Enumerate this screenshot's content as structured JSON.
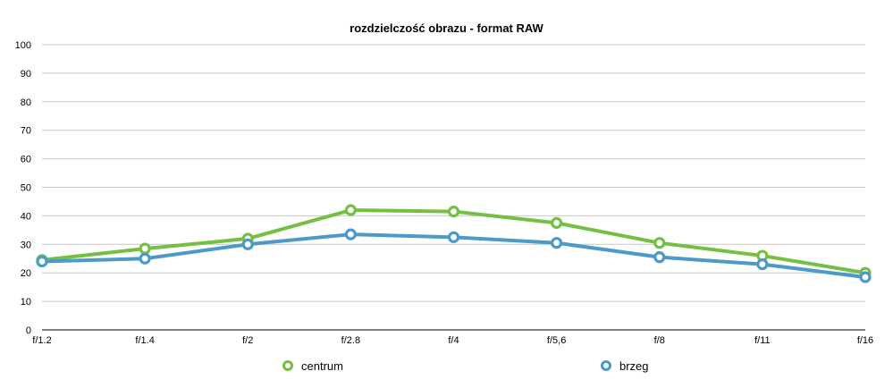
{
  "chart_data": {
    "type": "line",
    "title": "rozdzielczość obrazu - format RAW",
    "xlabel": "",
    "ylabel": "",
    "categories": [
      "f/1.2",
      "f/1.4",
      "f/2",
      "f/2.8",
      "f/4",
      "f/5,6",
      "f/8",
      "f/11",
      "f/16"
    ],
    "ylim": [
      0,
      100
    ],
    "yticks": [
      0,
      10,
      20,
      30,
      40,
      50,
      60,
      70,
      80,
      90,
      100
    ],
    "grid": true,
    "legend_position": "bottom",
    "series": [
      {
        "name": "centrum",
        "color": "#74c044",
        "values": [
          24.5,
          28.5,
          32,
          42,
          41.5,
          37.5,
          30.5,
          26,
          20
        ]
      },
      {
        "name": "brzeg",
        "color": "#4d9ac9",
        "values": [
          24,
          25,
          30,
          33.5,
          32.5,
          30.5,
          25.5,
          23,
          18.5
        ]
      }
    ]
  }
}
